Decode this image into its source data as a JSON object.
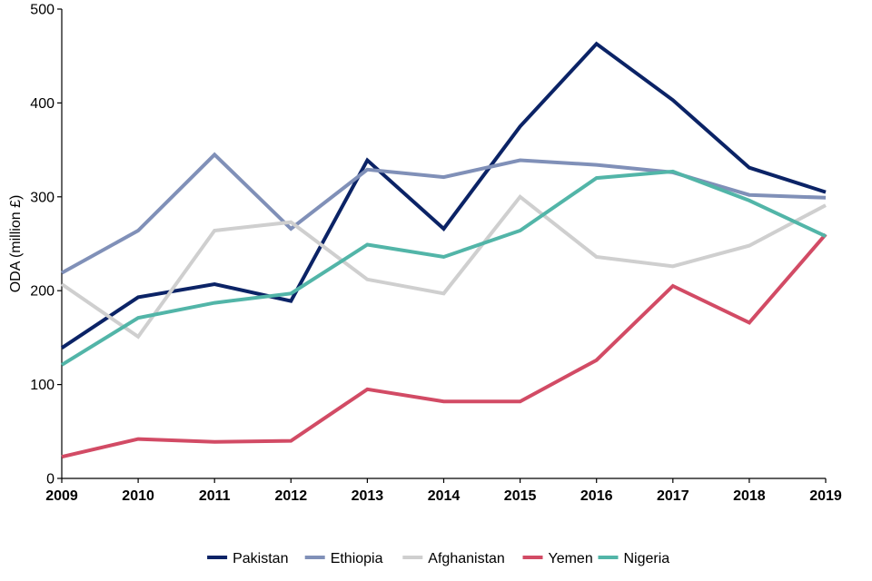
{
  "chart_data": {
    "type": "line",
    "title": "",
    "xlabel": "",
    "ylabel": "ODA (million £)",
    "x": [
      "2009",
      "2010",
      "2011",
      "2012",
      "2013",
      "2014",
      "2015",
      "2016",
      "2017",
      "2018",
      "2019"
    ],
    "ylim": [
      0,
      500
    ],
    "yticks": [
      "0",
      "100",
      "200",
      "300",
      "400",
      "500"
    ],
    "grid": false,
    "legend_position": "bottom",
    "series": [
      {
        "name": "Pakistan",
        "color": "#0b2366",
        "values": [
          139,
          193,
          207,
          189,
          339,
          266,
          375,
          463,
          403,
          331,
          305
        ]
      },
      {
        "name": "Ethiopia",
        "color": "#8090b8",
        "values": [
          219,
          264,
          345,
          266,
          329,
          321,
          339,
          334,
          326,
          302,
          299
        ]
      },
      {
        "name": "Afghanistan",
        "color": "#cfcfcf",
        "values": [
          207,
          151,
          264,
          273,
          212,
          197,
          300,
          236,
          226,
          248,
          291
        ]
      },
      {
        "name": "Yemen",
        "color": "#d24b65",
        "values": [
          23,
          42,
          39,
          40,
          95,
          82,
          82,
          126,
          205,
          166,
          260
        ]
      },
      {
        "name": "Nigeria",
        "color": "#52b5a8",
        "values": [
          121,
          171,
          187,
          197,
          249,
          236,
          264,
          320,
          327,
          296,
          258
        ]
      }
    ]
  }
}
